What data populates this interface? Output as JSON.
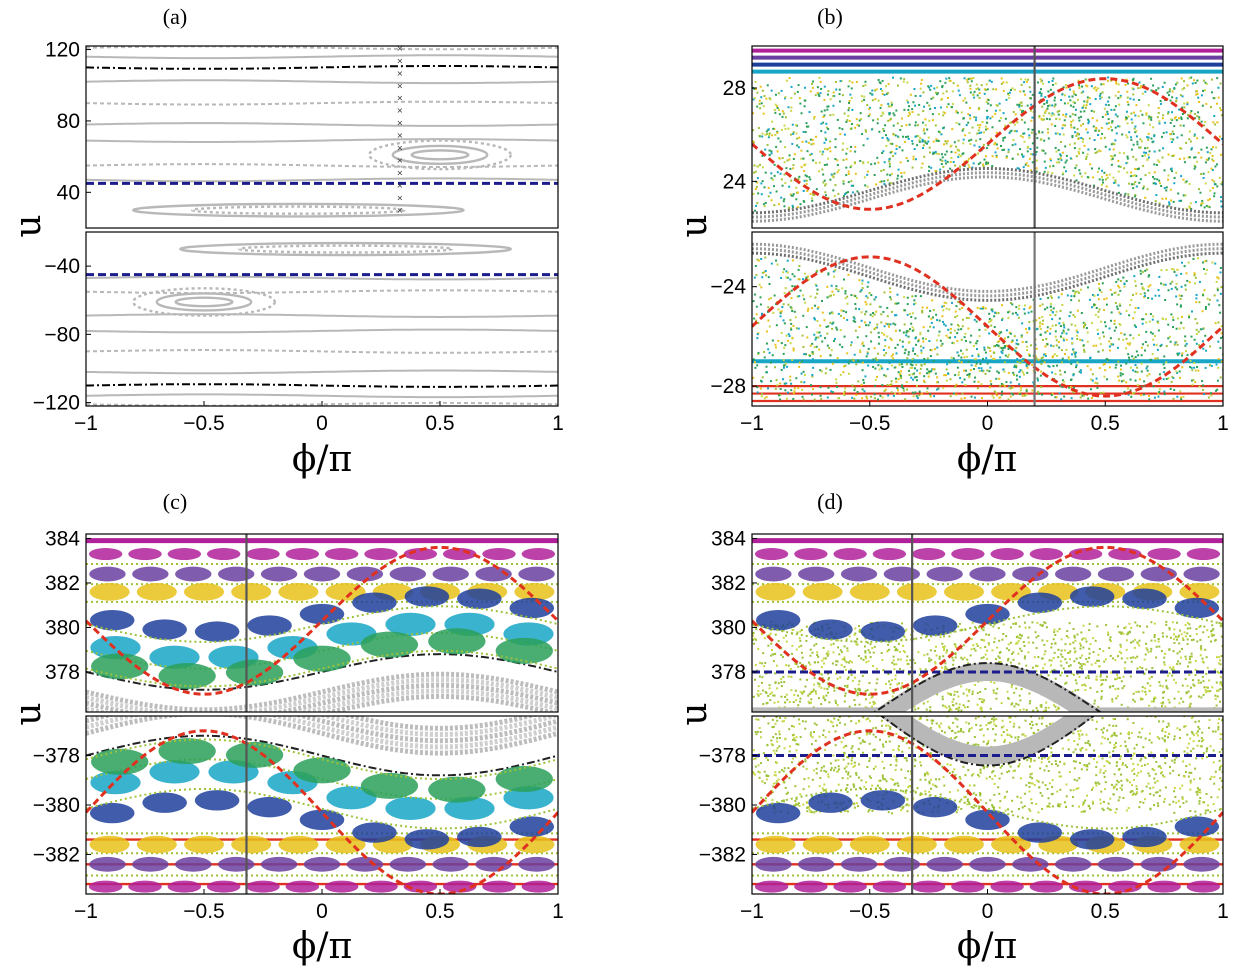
{
  "chart_data": [
    {
      "type": "scatter",
      "panel_label": "(a)",
      "xlabel": "ϕ/π",
      "ylabel": "u",
      "xlim": [
        -1,
        1
      ],
      "xticks": [
        "−1",
        "−0.5",
        "0",
        "0.5",
        "1"
      ],
      "top_ylim": [
        20,
        122
      ],
      "bottom_ylim": [
        -122,
        -20
      ],
      "top_yticks": [
        {
          "v": 120,
          "t": "120"
        },
        {
          "v": 80,
          "t": "80"
        },
        {
          "v": 40,
          "t": "40"
        }
      ],
      "bottom_yticks": [
        {
          "v": -40,
          "t": "−40"
        },
        {
          "v": -80,
          "t": "−80"
        },
        {
          "v": -120,
          "t": "−120"
        }
      ],
      "series": [
        {
          "style": "grey-orbits",
          "levels": [
            121,
            116,
            102,
            90,
            78,
            69,
            55,
            47
          ],
          "amplitude": 0.8
        },
        {
          "style": "black-dashdot",
          "levels": [
            110
          ],
          "amplitude": 1
        },
        {
          "style": "blue-dashed-horizontal",
          "levels": [
            45,
            -45
          ]
        },
        {
          "style": "grey-islands",
          "center_phase": 0.5,
          "center_u": 61,
          "widths": [
            0.12,
            0.2,
            0.3
          ],
          "heights": [
            2.5,
            5,
            8
          ]
        },
        {
          "style": "grey-islands",
          "center_phase": -0.1,
          "center_u": 30,
          "widths": [
            0.7,
            0.45
          ],
          "heights": [
            3.5,
            2
          ]
        }
      ],
      "marker_x": 0.33
    },
    {
      "type": "scatter",
      "panel_label": "(b)",
      "xlabel": "ϕ/π",
      "ylabel": "u",
      "xlim": [
        -1,
        1
      ],
      "xticks": [
        "−1",
        "−0.5",
        "0",
        "0.5",
        "1"
      ],
      "top_ylim": [
        22,
        29.8
      ],
      "bottom_ylim": [
        -28.8,
        -21.8
      ],
      "top_yticks": [
        {
          "v": 28,
          "t": "28"
        },
        {
          "v": 24,
          "t": "24"
        }
      ],
      "bottom_yticks": [
        {
          "v": -24,
          "t": "−24"
        },
        {
          "v": -28,
          "t": "−28"
        }
      ],
      "series": [
        {
          "style": "chaotic-sea",
          "upper_edge": 28.5,
          "lower_edge_mean": 23.7,
          "lower_edge_amplitude": 0.95
        },
        {
          "style": "red-dashed-separatrix",
          "mean": 25.6,
          "amplitude": 2.8
        }
      ],
      "marker_x": 0.2
    },
    {
      "type": "scatter",
      "panel_label": "(c)",
      "xlabel": "ϕ/π",
      "ylabel": "u",
      "xlim": [
        -1,
        1
      ],
      "xticks": [
        "−1",
        "−0.5",
        "0",
        "0.5",
        "1"
      ],
      "top_ylim": [
        376.2,
        384.2
      ],
      "bottom_ylim": [
        -383.6,
        -376.4
      ],
      "top_yticks": [
        {
          "v": 384,
          "t": "384"
        },
        {
          "v": 382,
          "t": "382"
        },
        {
          "v": 380,
          "t": "380"
        },
        {
          "v": 378,
          "t": "378"
        }
      ],
      "bottom_yticks": [
        {
          "v": -378,
          "t": "−378"
        },
        {
          "v": -380,
          "t": "−380"
        },
        {
          "v": -382,
          "t": "−382"
        }
      ],
      "series": [
        {
          "style": "resonance-chain-bands",
          "levels": [
            383.3,
            382.4,
            381.6,
            380.6,
            379.4,
            378.6
          ]
        },
        {
          "style": "red-dashed-separatrix",
          "mean": 380.3,
          "amplitude": 3.3
        }
      ],
      "marker_x": -0.32
    },
    {
      "type": "scatter",
      "panel_label": "(d)",
      "xlabel": "ϕ/π",
      "ylabel": "u",
      "xlim": [
        -1,
        1
      ],
      "xticks": [
        "−1",
        "−0.5",
        "0",
        "0.5",
        "1"
      ],
      "top_ylim": [
        376.2,
        384.2
      ],
      "bottom_ylim": [
        -383.6,
        -376.4
      ],
      "top_yticks": [
        {
          "v": 384,
          "t": "384"
        },
        {
          "v": 382,
          "t": "382"
        },
        {
          "v": 380,
          "t": "380"
        },
        {
          "v": 378,
          "t": "378"
        }
      ],
      "bottom_yticks": [
        {
          "v": -378,
          "t": "−378"
        },
        {
          "v": -380,
          "t": "−380"
        },
        {
          "v": -382,
          "t": "−382"
        }
      ],
      "series": [
        {
          "style": "resonance-chain-bands",
          "levels": [
            383.3,
            382.4,
            381.6,
            380.6
          ]
        },
        {
          "style": "chaotic-sea",
          "upper_edge": 380,
          "lower_edge_mean": 378,
          "lower_edge_amplitude": 0
        },
        {
          "style": "blue-dashed-horizontal",
          "levels": [
            378,
            -378
          ]
        },
        {
          "style": "red-dashed-separatrix",
          "mean": 380.3,
          "amplitude": 3.3
        }
      ],
      "marker_x": -0.32
    }
  ],
  "colors": {
    "magenta": "#b0209a",
    "purple": "#6a3fa0",
    "navy": "#1f3f9c",
    "teal": "#18a6c6",
    "green": "#2aa05a",
    "lime": "#9dc238",
    "yellow": "#e8c21a",
    "olive": "#c8d846",
    "grey": "#b8b8b8",
    "dark_grey": "#707070",
    "red_line": "#e03020",
    "blue_dash": "#1c1c8c"
  }
}
